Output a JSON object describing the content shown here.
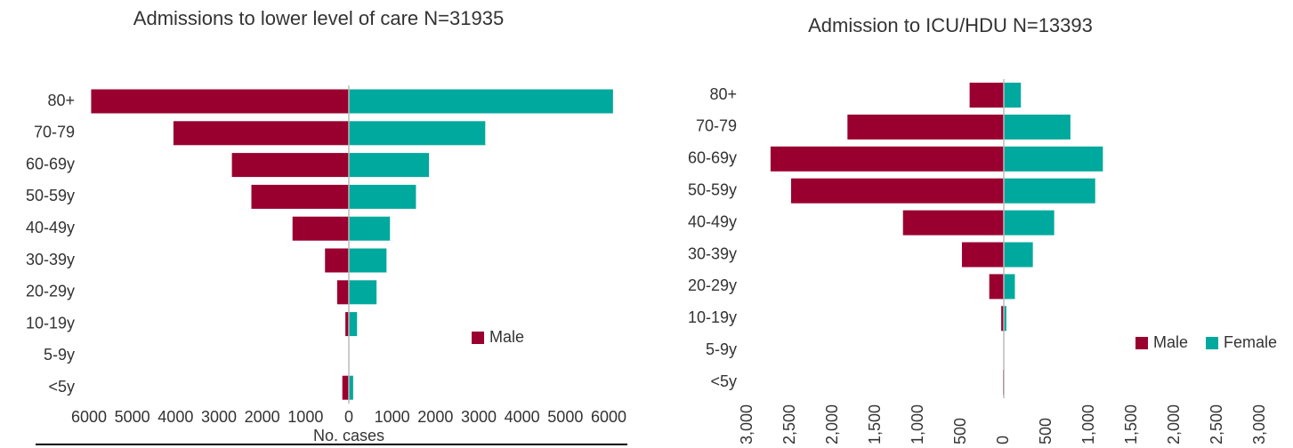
{
  "chart_data": [
    {
      "type": "pyramid",
      "title": "Admissions to lower level of care N=31935",
      "x_label": "No. cases",
      "categories": [
        "80+",
        "70-79",
        "60-69y",
        "50-59y",
        "40-49y",
        "30-39y",
        "20-29y",
        "10-19y",
        "5-9y",
        "<5y"
      ],
      "series": [
        {
          "name": "Male",
          "color": "#990030",
          "values": [
            -5950,
            -4050,
            -2700,
            -2250,
            -1300,
            -550,
            -270,
            -80,
            0,
            -150
          ]
        },
        {
          "color": "#00a99d",
          "values": [
            6100,
            3150,
            1850,
            1550,
            950,
            870,
            640,
            190,
            0,
            100
          ]
        }
      ],
      "xlim": [
        -6000,
        6000
      ],
      "xticks": [
        {
          "value": -6000,
          "label": "6000"
        },
        {
          "value": -5000,
          "label": "5000"
        },
        {
          "value": -4000,
          "label": "4000"
        },
        {
          "value": -3000,
          "label": "3000"
        },
        {
          "value": -2000,
          "label": "2000"
        },
        {
          "value": -1000,
          "label": "1000"
        },
        0,
        1000,
        2000,
        3000,
        4000,
        5000,
        6000
      ]
    },
    {
      "type": "pyramid",
      "title": "Admission to ICU/HDU N=13393",
      "categories": [
        "80+",
        "70-79",
        "60-69y",
        "50-59y",
        "40-49y",
        "30-39y",
        "20-29y",
        "10-19y",
        "5-9y",
        "<5y"
      ],
      "series": [
        {
          "name": "Male",
          "color": "#990030",
          "values": [
            -400,
            -1830,
            -2730,
            -2490,
            -1180,
            -490,
            -170,
            -30,
            0,
            -10
          ]
        },
        {
          "name": "Female",
          "color": "#00a99d",
          "values": [
            200,
            780,
            1160,
            1070,
            590,
            340,
            130,
            30,
            0,
            0
          ]
        }
      ],
      "xlim": [
        -3000,
        3000
      ],
      "xticks": [
        {
          "value": -3000,
          "label": "3,000"
        },
        {
          "value": -2500,
          "label": "2,500"
        },
        {
          "value": -2000,
          "label": "2,000"
        },
        {
          "value": -1500,
          "label": "1,500"
        },
        {
          "value": -1000,
          "label": "1,000"
        },
        {
          "value": -500,
          "label": "500"
        },
        0,
        500,
        {
          "value": 1000,
          "label": "1,000"
        },
        {
          "value": 1500,
          "label": "1,500"
        },
        {
          "value": 2000,
          "label": "2,000"
        },
        {
          "value": 2500,
          "label": "2,500"
        },
        {
          "value": 3000,
          "label": "3,000"
        }
      ]
    }
  ]
}
